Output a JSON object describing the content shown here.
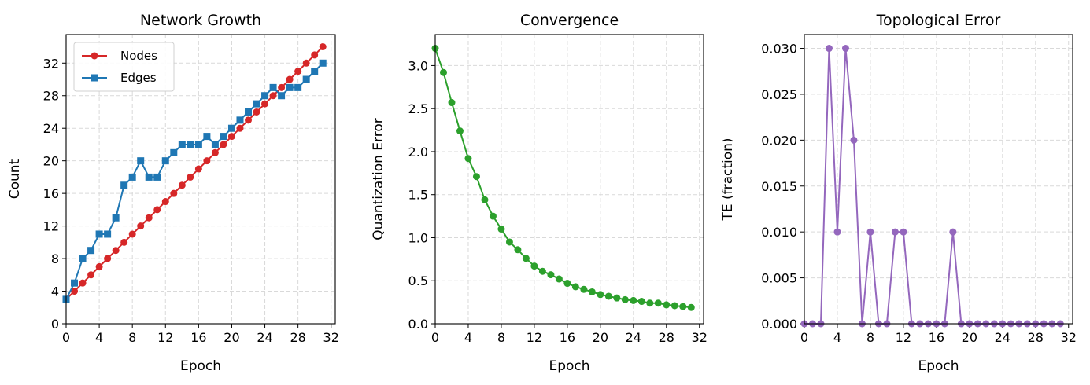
{
  "chart_data": [
    {
      "type": "line",
      "title": "Network Growth",
      "xlabel": "Epoch",
      "ylabel": "Count",
      "xlim": [
        0,
        32.5
      ],
      "ylim": [
        0,
        35.5
      ],
      "xticks": [
        0,
        4,
        8,
        12,
        16,
        20,
        24,
        28,
        32
      ],
      "yticks": [
        0,
        4,
        8,
        12,
        16,
        20,
        24,
        28,
        32
      ],
      "ytick_labels": [
        "0",
        "4",
        "8",
        "12",
        "16",
        "20",
        "24",
        "28",
        "32"
      ],
      "grid": true,
      "legend": "top-left",
      "x": [
        0,
        1,
        2,
        3,
        4,
        5,
        6,
        7,
        8,
        9,
        10,
        11,
        12,
        13,
        14,
        15,
        16,
        17,
        18,
        19,
        20,
        21,
        22,
        23,
        24,
        25,
        26,
        27,
        28,
        29,
        30,
        31
      ],
      "series": [
        {
          "name": "Nodes",
          "color": "#d62728",
          "marker": "circle",
          "values": [
            3,
            4,
            5,
            6,
            7,
            8,
            9,
            10,
            11,
            12,
            13,
            14,
            15,
            16,
            17,
            18,
            19,
            20,
            21,
            22,
            23,
            24,
            25,
            26,
            27,
            28,
            29,
            30,
            31,
            32,
            33,
            34
          ]
        },
        {
          "name": "Edges",
          "color": "#1f77b4",
          "marker": "square",
          "values": [
            3,
            5,
            8,
            9,
            11,
            11,
            13,
            17,
            18,
            20,
            18,
            18,
            20,
            21,
            22,
            22,
            22,
            23,
            22,
            23,
            24,
            25,
            26,
            27,
            28,
            29,
            28,
            29,
            29,
            30,
            31,
            32
          ]
        }
      ]
    },
    {
      "type": "line",
      "title": "Convergence",
      "xlabel": "Epoch",
      "ylabel": "Quantization Error",
      "xlim": [
        0,
        32.5
      ],
      "ylim": [
        0,
        3.36
      ],
      "xticks": [
        0,
        4,
        8,
        12,
        16,
        20,
        24,
        28,
        32
      ],
      "yticks": [
        0,
        0.5,
        1.0,
        1.5,
        2.0,
        2.5,
        3.0
      ],
      "ytick_labels": [
        "0.0",
        "0.5",
        "1.0",
        "1.5",
        "2.0",
        "2.5",
        "3.0"
      ],
      "grid": true,
      "x": [
        0,
        1,
        2,
        3,
        4,
        5,
        6,
        7,
        8,
        9,
        10,
        11,
        12,
        13,
        14,
        15,
        16,
        17,
        18,
        19,
        20,
        21,
        22,
        23,
        24,
        25,
        26,
        27,
        28,
        29,
        30,
        31
      ],
      "series": [
        {
          "color": "#2ca02c",
          "marker": "circle",
          "values": [
            3.2,
            2.92,
            2.57,
            2.24,
            1.92,
            1.71,
            1.44,
            1.25,
            1.1,
            0.95,
            0.86,
            0.76,
            0.67,
            0.61,
            0.57,
            0.52,
            0.47,
            0.43,
            0.4,
            0.37,
            0.34,
            0.32,
            0.3,
            0.28,
            0.27,
            0.26,
            0.24,
            0.24,
            0.22,
            0.21,
            0.2,
            0.19
          ]
        }
      ]
    },
    {
      "type": "line",
      "title": "Topological Error",
      "xlabel": "Epoch",
      "ylabel": "TE (fraction)",
      "xlim": [
        0,
        32.5
      ],
      "ylim": [
        0,
        0.0315
      ],
      "xticks": [
        0,
        4,
        8,
        12,
        16,
        20,
        24,
        28,
        32
      ],
      "yticks": [
        0,
        0.005,
        0.01,
        0.015,
        0.02,
        0.025,
        0.03
      ],
      "ytick_labels": [
        "0.000",
        "0.005",
        "0.010",
        "0.015",
        "0.020",
        "0.025",
        "0.030"
      ],
      "grid": true,
      "x": [
        0,
        1,
        2,
        3,
        4,
        5,
        6,
        7,
        8,
        9,
        10,
        11,
        12,
        13,
        14,
        15,
        16,
        17,
        18,
        19,
        20,
        21,
        22,
        23,
        24,
        25,
        26,
        27,
        28,
        29,
        30,
        31
      ],
      "series": [
        {
          "color": "#9467bd",
          "marker": "circle",
          "values": [
            0,
            0,
            0,
            0.03,
            0.01,
            0.03,
            0.02,
            0,
            0.01,
            0,
            0,
            0.01,
            0.01,
            0,
            0,
            0,
            0,
            0,
            0.01,
            0,
            0,
            0,
            0,
            0,
            0,
            0,
            0,
            0,
            0,
            0,
            0,
            0
          ]
        }
      ]
    }
  ]
}
